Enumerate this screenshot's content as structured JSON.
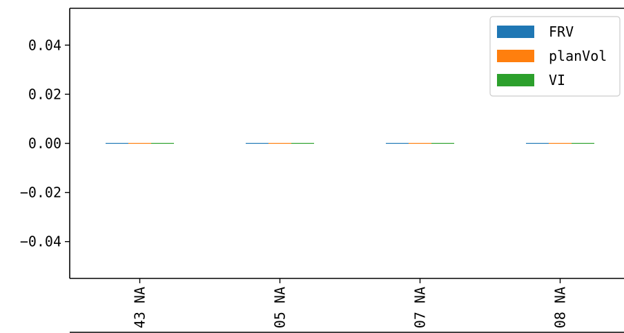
{
  "chart_data": {
    "type": "bar",
    "categories": [
      "43 NA",
      "05 NA",
      "07 NA",
      "08 NA"
    ],
    "series": [
      {
        "name": "FRV",
        "values": [
          0,
          0,
          0,
          0
        ],
        "color": "#1f77b4"
      },
      {
        "name": "planVol",
        "values": [
          0,
          0,
          0,
          0
        ],
        "color": "#ff7f0e"
      },
      {
        "name": "VI",
        "values": [
          0,
          0,
          0,
          0
        ],
        "color": "#2ca02c"
      }
    ],
    "yticks": [
      -0.04,
      -0.02,
      0.0,
      0.02,
      0.04
    ],
    "ytick_labels": [
      "−0.04",
      "−0.02",
      "0.00",
      "0.02",
      "0.04"
    ],
    "ylim": [
      -0.055,
      0.055
    ],
    "grid": false,
    "legend_position": "top-right",
    "xtick_rotation": "vertical"
  }
}
